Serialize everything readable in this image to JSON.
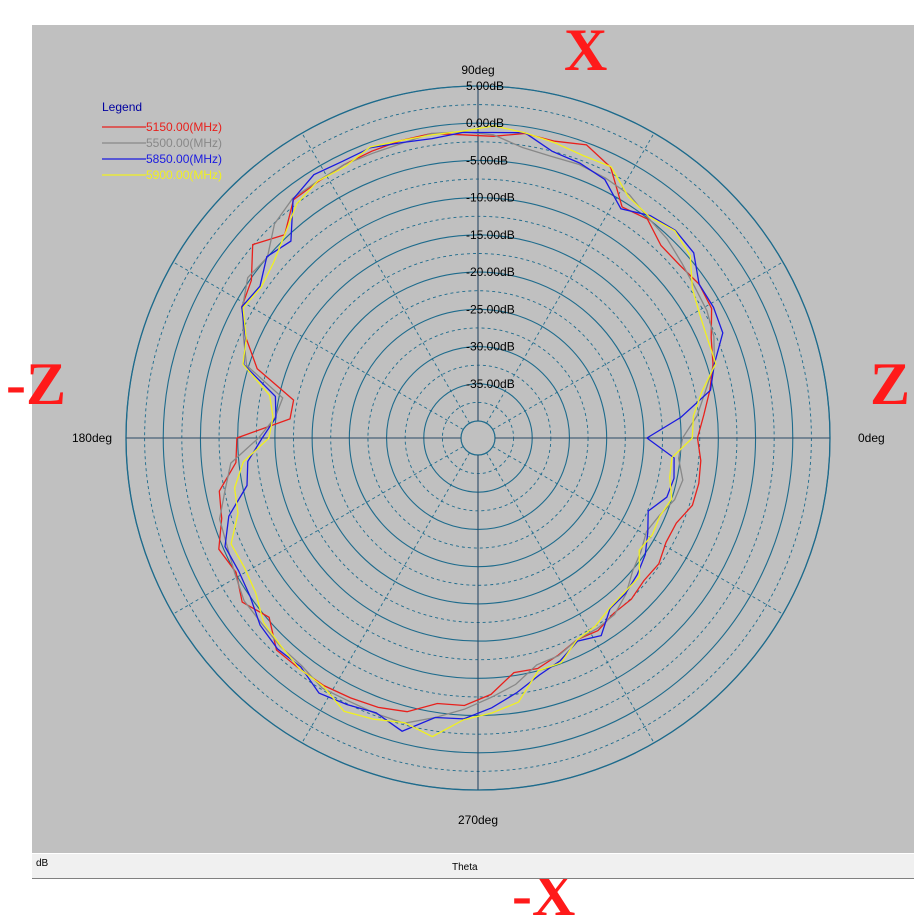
{
  "chart_data": {
    "type": "polar-line",
    "legend_title": "Legend",
    "legend_position": "top-left",
    "series": [
      {
        "name": "5150.00(MHz)",
        "color": "#e8201c",
        "r_db": [
          -12.8,
          -11.8,
          -10.5,
          -9.2,
          -8.2,
          -6.4,
          -6.1,
          -6.6,
          -6.6,
          -5.1,
          -5.7,
          -1.8,
          -0.3,
          -1.1,
          -0.9,
          -1.7,
          -1.5,
          -0.9,
          -1.0,
          -1.2,
          -1.4,
          -1.7,
          -1.8,
          -4.6,
          -2.4,
          -5.2,
          -6.0,
          -8.4,
          -11.2,
          -17.0,
          -16.9,
          -9.9,
          -9.6,
          -6.8,
          -6.2,
          -4.4,
          -5.1,
          -3.7,
          -5.3,
          -3.0,
          -3.1,
          -3.1,
          -3.4,
          -3.7,
          -4.3,
          -6.2,
          -6.3,
          -7.8,
          -10.4,
          -10.3,
          -11.2,
          -12.1,
          -11.8,
          -12.5,
          -12.4,
          -12.9,
          -12.7,
          -13.4,
          -13.3,
          -12.1,
          -12.0,
          -12.2
        ]
      },
      {
        "name": "5500.00(MHz)",
        "color": "#888888",
        "r_db": [
          -14.8,
          -12.7,
          -11.1,
          -9.0,
          -7.8,
          -7.1,
          -6.8,
          -6.2,
          -5.4,
          -4.9,
          -3.8,
          -3.4,
          -3.1,
          -3.2,
          -2.8,
          -1.5,
          -1.1,
          -0.9,
          -1.4,
          -1.5,
          -1.4,
          -1.6,
          -1.6,
          -2.6,
          -5.0,
          -4.6,
          -6.1,
          -8.0,
          -9.7,
          -15.5,
          -14.9,
          -12.8,
          -8.9,
          -7.6,
          -5.9,
          -5.6,
          -4.9,
          -4.0,
          -4.0,
          -3.7,
          -3.6,
          -2.7,
          -2.9,
          -2.8,
          -2.7,
          -4.3,
          -5.8,
          -7.4,
          -8.8,
          -10.8,
          -11.1,
          -12.1,
          -12.1,
          -12.3,
          -13.4,
          -14.9,
          -15.6,
          -16.4,
          -15.8,
          -14.6,
          -14.2,
          -15.2
        ]
      },
      {
        "name": "5850.00(MHz)",
        "color": "#1a1ae0",
        "r_db": [
          -19.6,
          -14.9,
          -10.4,
          -9.0,
          -6.5,
          -6.1,
          -6.1,
          -4.1,
          -3.8,
          -4.5,
          -6.0,
          -3.6,
          -2.9,
          -2.5,
          -0.8,
          -1.2,
          -1.2,
          -1.6,
          -1.3,
          -0.7,
          -0.9,
          -0.6,
          -1.7,
          -5.8,
          -4.9,
          -6.6,
          -6.0,
          -8.3,
          -9.3,
          -14.5,
          -15.0,
          -13.3,
          -11.2,
          -10.6,
          -7.2,
          -5.3,
          -5.5,
          -5.0,
          -3.7,
          -3.2,
          -3.4,
          -1.9,
          -2.4,
          -2.9,
          -1.6,
          -4.3,
          -4.5,
          -6.0,
          -7.7,
          -9.4,
          -10.4,
          -11.9,
          -11.0,
          -13.3,
          -13.5,
          -14.1,
          -14.9,
          -16.2,
          -17.4,
          -15.7,
          -15.4,
          -15.8
        ]
      },
      {
        "name": "5900.00(MHz)",
        "color": "#f0f020",
        "r_db": [
          -13.5,
          -13.2,
          -11.6,
          -8.8,
          -8.7,
          -8.2,
          -7.2,
          -4.7,
          -3.9,
          -4.7,
          -4.1,
          -1.7,
          -1.8,
          -1.3,
          -0.8,
          -0.3,
          -1.0,
          -1.1,
          -1.0,
          -0.6,
          -1.7,
          -1.6,
          -2.5,
          -4.6,
          -6.1,
          -6.8,
          -6.2,
          -8.4,
          -9.2,
          -13.7,
          -14.6,
          -14.2,
          -10.6,
          -8.9,
          -8.5,
          -6.2,
          -6.4,
          -5.9,
          -4.3,
          -3.8,
          -3.1,
          -3.0,
          -1.4,
          -2.0,
          -2.8,
          -1.7,
          -4.4,
          -5.3,
          -6.4,
          -10.0,
          -10.1,
          -12.1,
          -12.5,
          -13.4,
          -13.7,
          -13.7,
          -15.9,
          -15.5,
          -15.7,
          -15.0,
          -16.0,
          -16.1
        ]
      }
    ],
    "radial_axis": {
      "range": [
        -40,
        5
      ],
      "ticks": [
        5,
        0,
        -5,
        -10,
        -15,
        -20,
        -25,
        -30,
        -35
      ],
      "tick_labels": [
        "5.00dB",
        "0.00dB",
        "-5.00dB",
        "-10.00dB",
        "-15.00dB",
        "-20.00dB",
        "-25.00dB",
        "-30.00dB",
        "-35.00dB"
      ],
      "unit": "dB"
    },
    "angular_axis": {
      "labels": [
        "0deg",
        "90deg",
        "180deg",
        "270deg"
      ],
      "label_angles_deg": [
        0,
        90,
        180,
        270
      ],
      "spoke_step_deg": 30
    },
    "grid": true
  },
  "axis_annotations": {
    "top": "X",
    "bottom": "-X",
    "left": "-Z",
    "right": "Z"
  },
  "status_bar": {
    "left_text": "dB",
    "center_text": "Theta"
  },
  "colors": {
    "panel_bg": "#c0c0c0",
    "grid": "#1e6b8c",
    "annotation": "#ff1a1a"
  }
}
